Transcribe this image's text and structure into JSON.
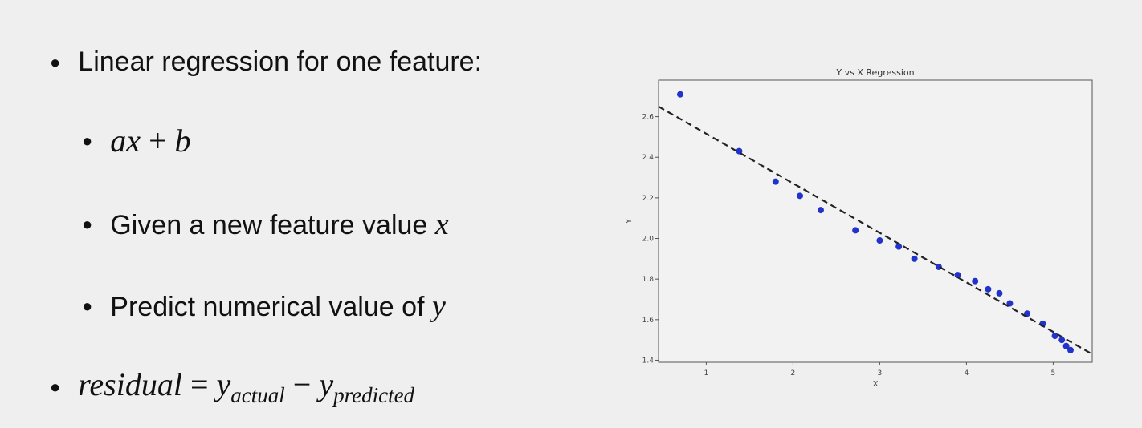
{
  "slide": {
    "bullet_main": "Linear regression for one feature:",
    "formula_ax": "ax",
    "formula_plus": " + ",
    "formula_b": "b",
    "bullet_given_prefix": "Given a new feature value ",
    "bullet_given_var": "x",
    "bullet_predict_prefix": "Predict numerical value of ",
    "bullet_predict_var": "y",
    "residual_word": "residual",
    "residual_eq": " = ",
    "residual_y1": "y",
    "residual_sub1": "actual",
    "residual_minus": " − ",
    "residual_y2": "y",
    "residual_sub2": "predicted"
  },
  "chart_data": {
    "type": "scatter",
    "title": "Y vs X Regression",
    "xlabel": "X",
    "ylabel": "Y",
    "xlim": [
      0.45,
      5.45
    ],
    "ylim": [
      1.39,
      2.78
    ],
    "xticks": [
      1,
      2,
      3,
      4,
      5
    ],
    "yticks": [
      1.4,
      1.6,
      1.8,
      2.0,
      2.2,
      2.4,
      2.6
    ],
    "ytick_labels": [
      "1.4",
      "1.6",
      "1.8",
      "2.0",
      "2.2",
      "2.4",
      "2.6"
    ],
    "grid": false,
    "point_color": "#2233cc",
    "line_color": "#222222",
    "points": [
      {
        "x": 0.7,
        "y": 2.71
      },
      {
        "x": 1.38,
        "y": 2.43
      },
      {
        "x": 1.8,
        "y": 2.28
      },
      {
        "x": 2.08,
        "y": 2.21
      },
      {
        "x": 2.32,
        "y": 2.14
      },
      {
        "x": 2.72,
        "y": 2.04
      },
      {
        "x": 3.0,
        "y": 1.99
      },
      {
        "x": 3.22,
        "y": 1.96
      },
      {
        "x": 3.4,
        "y": 1.9
      },
      {
        "x": 3.68,
        "y": 1.86
      },
      {
        "x": 3.9,
        "y": 1.82
      },
      {
        "x": 4.1,
        "y": 1.79
      },
      {
        "x": 4.25,
        "y": 1.75
      },
      {
        "x": 4.38,
        "y": 1.73
      },
      {
        "x": 4.5,
        "y": 1.68
      },
      {
        "x": 4.7,
        "y": 1.63
      },
      {
        "x": 4.88,
        "y": 1.58
      },
      {
        "x": 5.02,
        "y": 1.52
      },
      {
        "x": 5.1,
        "y": 1.5
      },
      {
        "x": 5.15,
        "y": 1.47
      },
      {
        "x": 5.2,
        "y": 1.45
      }
    ],
    "fit_line": {
      "x": [
        0.45,
        5.45
      ],
      "y": [
        2.65,
        1.43
      ],
      "style": "dashed"
    }
  }
}
